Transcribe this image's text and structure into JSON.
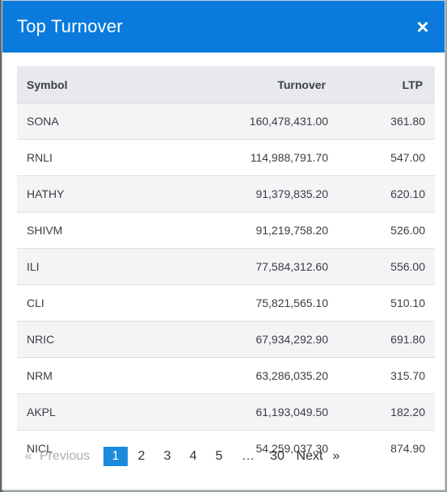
{
  "modal": {
    "title": "Top Turnover",
    "close_symbol": "×"
  },
  "table": {
    "headers": {
      "symbol": "Symbol",
      "turnover": "Turnover",
      "ltp": "LTP"
    },
    "rows": [
      {
        "symbol": "SONA",
        "turnover": "160,478,431.00",
        "ltp": "361.80"
      },
      {
        "symbol": "RNLI",
        "turnover": "114,988,791.70",
        "ltp": "547.00"
      },
      {
        "symbol": "HATHY",
        "turnover": "91,379,835.20",
        "ltp": "620.10"
      },
      {
        "symbol": "SHIVM",
        "turnover": "91,219,758.20",
        "ltp": "526.00"
      },
      {
        "symbol": "ILI",
        "turnover": "77,584,312.60",
        "ltp": "556.00"
      },
      {
        "symbol": "CLI",
        "turnover": "75,821,565.10",
        "ltp": "510.10"
      },
      {
        "symbol": "NRIC",
        "turnover": "67,934,292.90",
        "ltp": "691.80"
      },
      {
        "symbol": "NRM",
        "turnover": "63,286,035.20",
        "ltp": "315.70"
      },
      {
        "symbol": "AKPL",
        "turnover": "61,193,049.50",
        "ltp": "182.20"
      },
      {
        "symbol": "NICL",
        "turnover": "54,259,037.30",
        "ltp": "874.90"
      }
    ]
  },
  "pagination": {
    "prev_arrow": "«",
    "previous_label": "Previous",
    "pages": [
      "1",
      "2",
      "3",
      "4",
      "5"
    ],
    "active_page": "1",
    "ellipsis": "…",
    "last_page": "30",
    "next_label": "Next",
    "next_arrow": "»"
  },
  "colors": {
    "header_bg": "#0a7bdc",
    "active_page_bg": "#1c8adb",
    "table_head_bg": "#e7e9ec"
  }
}
